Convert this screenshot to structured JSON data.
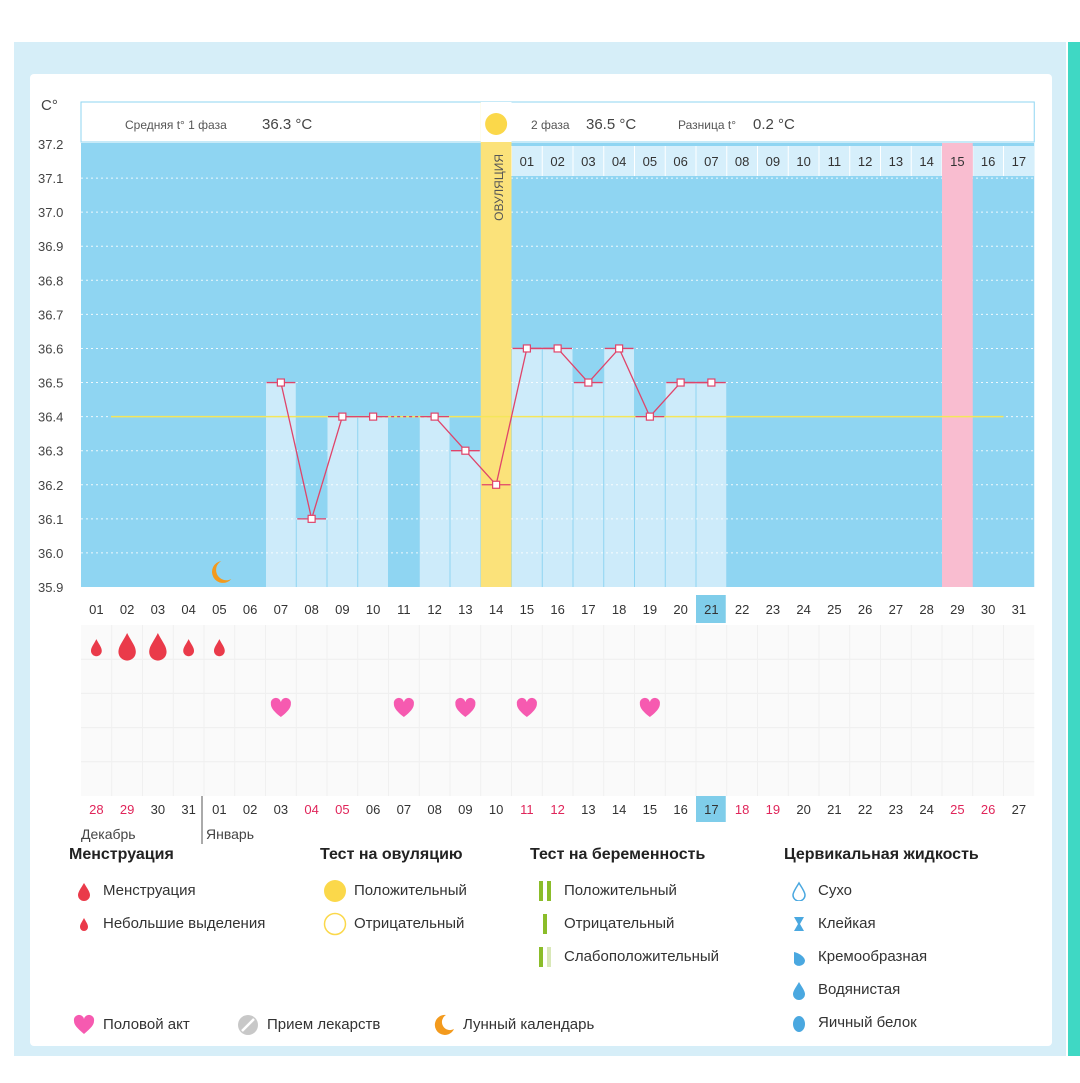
{
  "header": {
    "y_unit": "C°",
    "phase1_label": "Средняя t° 1 фаза",
    "phase1_value": "36.3 °C",
    "phase2_label": "2 фаза",
    "phase2_value": "36.5 °C",
    "diff_label": "Разница t°",
    "diff_value": "0.2 °C",
    "ovulation_label": "ОВУЛЯЦИЯ"
  },
  "chart_data": {
    "type": "line",
    "ylim": [
      35.9,
      37.2
    ],
    "y_ticks": [
      "35.9",
      "36.0",
      "36.1",
      "36.2",
      "36.3",
      "36.4",
      "36.5",
      "36.6",
      "36.7",
      "36.8",
      "36.9",
      "37.0",
      "37.1",
      "37.2"
    ],
    "cycle_days": [
      "01",
      "02",
      "03",
      "04",
      "05",
      "06",
      "07",
      "08",
      "09",
      "10",
      "11",
      "12",
      "13",
      "14",
      "15",
      "16",
      "17",
      "18",
      "19",
      "20",
      "21",
      "22",
      "23",
      "24",
      "25",
      "26",
      "27",
      "28",
      "29",
      "30",
      "31"
    ],
    "temperatures": [
      null,
      null,
      null,
      null,
      null,
      null,
      36.5,
      36.1,
      36.4,
      36.4,
      null,
      36.4,
      36.3,
      36.2,
      36.6,
      36.6,
      36.5,
      36.6,
      36.4,
      36.5,
      36.5,
      null,
      null,
      null,
      null,
      null,
      null,
      null,
      null,
      null,
      null
    ],
    "coverline": 36.4,
    "ovulation_day": "14",
    "current_day": "21",
    "luteal_day_labels": [
      "01",
      "02",
      "03",
      "04",
      "05",
      "06",
      "07",
      "08",
      "09",
      "10",
      "11",
      "12",
      "13",
      "14",
      "15",
      "16",
      "17"
    ],
    "luteal_highlight": "15",
    "expected_period_day": "29",
    "calendar_dates": [
      "28",
      "29",
      "30",
      "31",
      "01",
      "02",
      "03",
      "04",
      "05",
      "06",
      "07",
      "08",
      "09",
      "10",
      "11",
      "12",
      "13",
      "14",
      "15",
      "16",
      "17",
      "18",
      "19",
      "20",
      "21",
      "22",
      "23",
      "24",
      "25",
      "26",
      "27"
    ],
    "calendar_red_dates": [
      "28",
      "29",
      "04",
      "05",
      "11",
      "12",
      "18",
      "19",
      "25",
      "26"
    ],
    "calendar_today": "17",
    "month_prev": "Декабрь",
    "month_next": "Январь",
    "menstruation": [
      {
        "day": "01",
        "type": "small"
      },
      {
        "day": "02",
        "type": "full"
      },
      {
        "day": "03",
        "type": "full"
      },
      {
        "day": "04",
        "type": "small"
      },
      {
        "day": "05",
        "type": "small"
      }
    ],
    "intercourse_days": [
      "07",
      "11",
      "13",
      "15",
      "19"
    ],
    "moon_day": "05"
  },
  "legend": {
    "menstruation": {
      "title": "Менструация",
      "items": [
        "Менструация",
        "Небольшие выделения"
      ]
    },
    "ovulation_test": {
      "title": "Тест на овуляцию",
      "items": [
        "Положительный",
        "Отрицательный"
      ]
    },
    "pregnancy_test": {
      "title": "Тест на беременность",
      "items": [
        "Положительный",
        "Отрицательный",
        "Слабоположительный"
      ]
    },
    "cervical": {
      "title": "Цервикальная жидкость",
      "items": [
        "Сухо",
        "Клейкая",
        "Кремообразная",
        "Водянистая",
        "Яичный белок"
      ]
    },
    "bottom": {
      "intercourse": "Половой акт",
      "medication": "Прием лекарств",
      "lunar": "Лунный календарь"
    }
  },
  "colors": {
    "background_blue": "#8fd5f2",
    "bar_fill": "#cdebfa",
    "line": "#e0446a",
    "coverline": "#f5e65a",
    "ovulation": "#fbe27a",
    "expected_period": "#f9bdd0",
    "today": "#7fcdea",
    "heart": "#f65ab0",
    "drop": "#ea3a4a",
    "moon": "#f39a1d",
    "red_text": "#e0255a"
  }
}
